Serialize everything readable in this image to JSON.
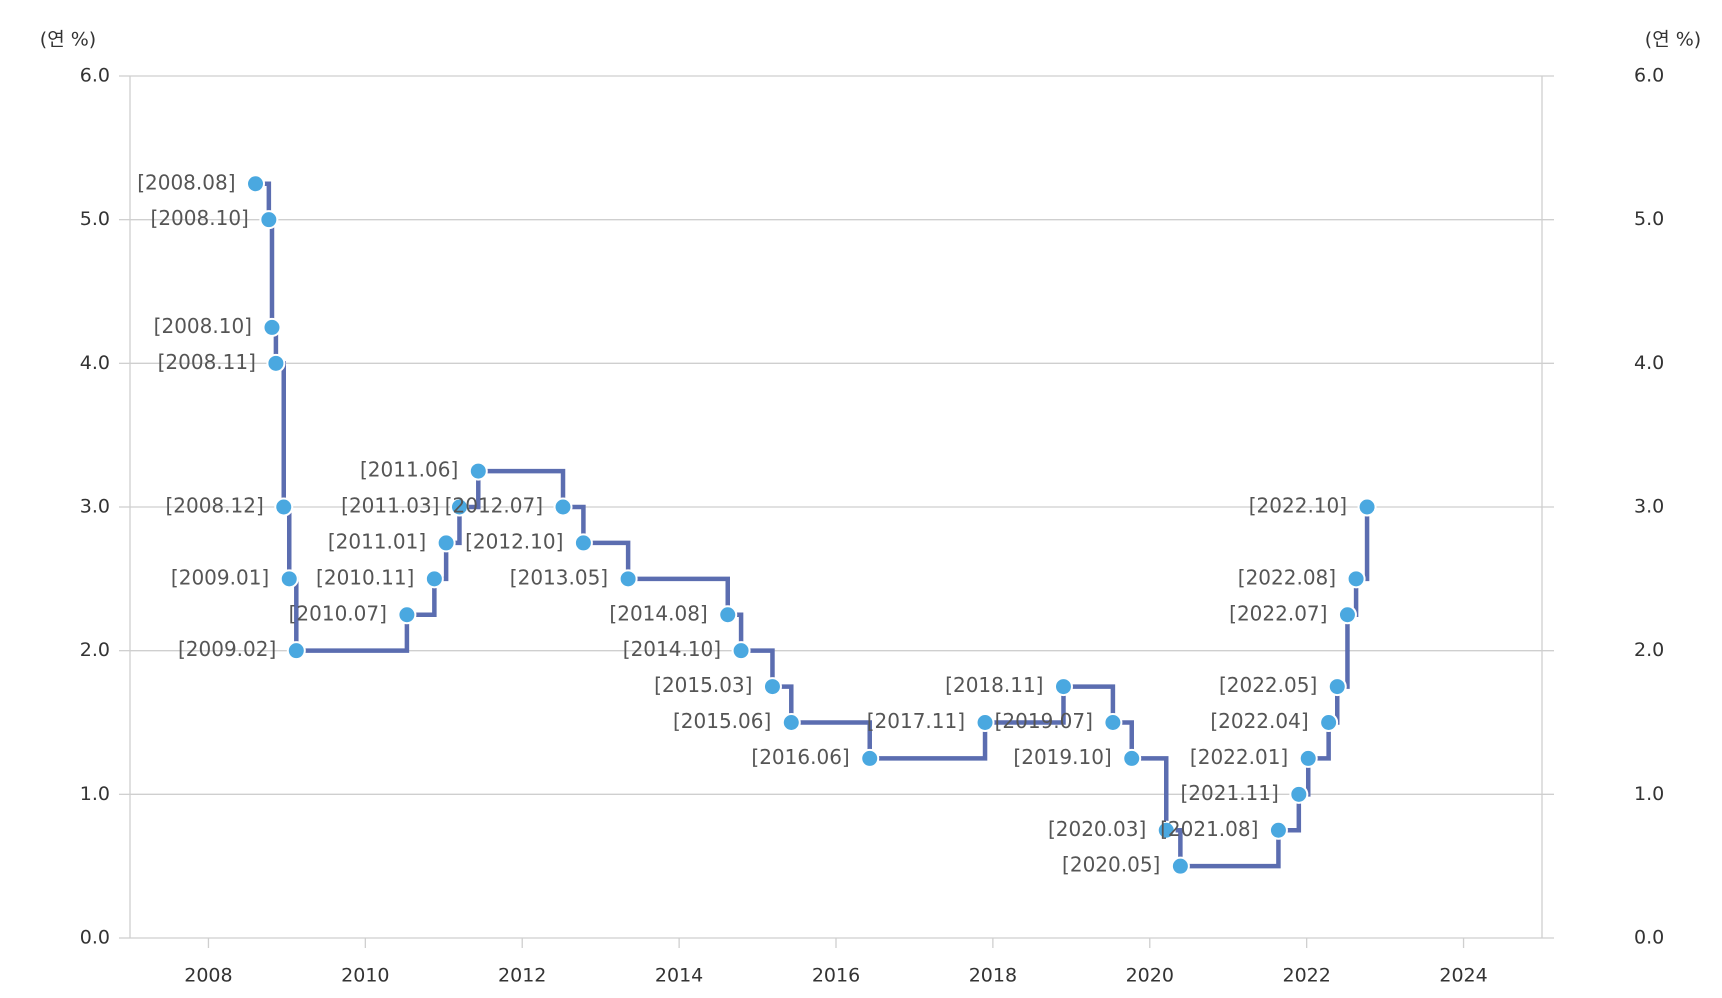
{
  "chart_data": {
    "type": "step",
    "y_label": "(연 %)",
    "y2_label": "(연 %)",
    "line_color": "#5b6db0",
    "marker_color": "#4aa8e0",
    "grid": true,
    "xlim": [
      2007,
      2025
    ],
    "xticks": [
      2008,
      2010,
      2012,
      2014,
      2016,
      2018,
      2020,
      2022,
      2024
    ],
    "ylim": [
      0,
      6
    ],
    "yticks": [
      {
        "value": 0,
        "label": "0.0"
      },
      {
        "value": 1,
        "label": "1.0"
      },
      {
        "value": 2,
        "label": "2.0"
      },
      {
        "value": 3,
        "label": "3.0"
      },
      {
        "value": 4,
        "label": "4.0"
      },
      {
        "value": 5,
        "label": "5.0"
      },
      {
        "value": 6,
        "label": "6.0"
      }
    ],
    "y2lim": [
      0,
      6
    ],
    "y2ticks": [
      {
        "value": 0,
        "label": "0.0"
      },
      {
        "value": 1,
        "label": "1.0"
      },
      {
        "value": 2,
        "label": "2.0"
      },
      {
        "value": 3,
        "label": "3.0"
      },
      {
        "value": 4,
        "label": "4.0"
      },
      {
        "value": 5,
        "label": "5.0"
      },
      {
        "value": 6,
        "label": "6.0"
      }
    ],
    "x": [
      2008.6,
      2008.77,
      2008.81,
      2008.86,
      2008.96,
      2009.03,
      2009.12,
      2010.53,
      2010.88,
      2011.03,
      2011.2,
      2011.44,
      2012.52,
      2012.78,
      2013.35,
      2014.62,
      2014.79,
      2015.19,
      2015.43,
      2016.43,
      2017.9,
      2018.9,
      2019.53,
      2019.77,
      2020.21,
      2020.39,
      2021.64,
      2021.9,
      2022.02,
      2022.28,
      2022.39,
      2022.52,
      2022.63,
      2022.77
    ],
    "values": [
      5.25,
      5.0,
      4.25,
      4.0,
      3.0,
      2.5,
      2.0,
      2.25,
      2.5,
      2.75,
      3.0,
      3.25,
      3.0,
      2.75,
      2.5,
      2.25,
      2.0,
      1.75,
      1.5,
      1.25,
      1.5,
      1.75,
      1.5,
      1.25,
      0.75,
      0.5,
      0.75,
      1.0,
      1.25,
      1.5,
      1.75,
      2.25,
      2.5,
      3.0
    ],
    "point_labels": [
      "[2008.08]",
      "[2008.10]",
      "[2008.10]",
      "[2008.11]",
      "[2008.12]",
      "[2009.01]",
      "[2009.02]",
      "[2010.07]",
      "[2010.11]",
      "[2011.01]",
      "[2011.03]",
      "[2011.06]",
      "[2012.07]",
      "[2012.10]",
      "[2013.05]",
      "[2014.08]",
      "[2014.10]",
      "[2015.03]",
      "[2015.06]",
      "[2016.06]",
      "[2017.11]",
      "[2018.11]",
      "[2019.07]",
      "[2019.10]",
      "[2020.03]",
      "[2020.05]",
      "[2021.08]",
      "[2021.11]",
      "[2022.01]",
      "[2022.04]",
      "[2022.05]",
      "[2022.07]",
      "[2022.08]",
      "[2022.10]"
    ]
  }
}
